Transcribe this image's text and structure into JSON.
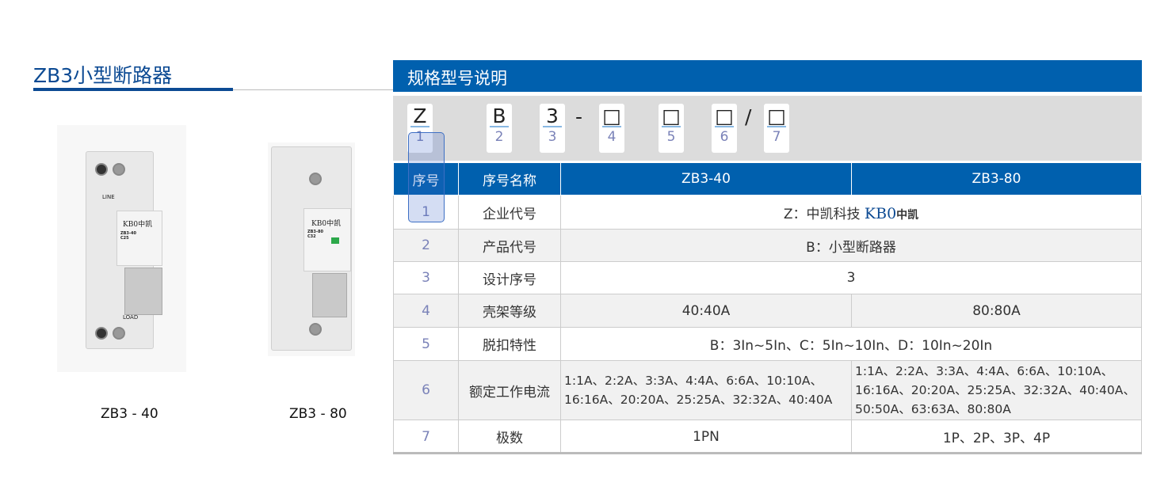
{
  "page_title": "ZB3小型断路器",
  "products": [
    {
      "caption": "ZB3 - 40",
      "brand": "KB0中凯",
      "model": "ZB3-40",
      "rating": "C25",
      "terminals_top": "LINE",
      "terminals_bottom": "LOAD"
    },
    {
      "caption": "ZB3 - 80",
      "brand": "KB0中凯",
      "model": "ZB3-80",
      "rating": "C32"
    }
  ],
  "spec_title": "规格型号说明",
  "code": [
    {
      "char": "Z",
      "num": "1"
    },
    {
      "char": "B",
      "num": "2"
    },
    {
      "char": "3",
      "num": "3"
    },
    {
      "char": "□",
      "num": "4"
    },
    {
      "char": "□",
      "num": "5"
    },
    {
      "char": "□",
      "num": "6"
    },
    {
      "char": "□",
      "num": "7"
    }
  ],
  "code_seps": {
    "dash": "-",
    "slash": "/"
  },
  "table": {
    "headers": [
      "序号",
      "序号名称",
      "ZB3-40",
      "ZB3-80"
    ],
    "rows": [
      {
        "no": "1",
        "name": "企业代号",
        "merged": "Z：中凯科技",
        "logo": "KB0",
        "logo_cn": "中凯"
      },
      {
        "no": "2",
        "name": "产品代号",
        "merged": "B：小型断路器"
      },
      {
        "no": "3",
        "name": "设计序号",
        "merged": "3"
      },
      {
        "no": "4",
        "name": "壳架等级",
        "a": "40:40A",
        "b": "80:80A"
      },
      {
        "no": "5",
        "name": "脱扣特性",
        "merged": "B：3In~5In、C：5In~10In、D：10In~20In"
      },
      {
        "no": "6",
        "name": "额定工作电流",
        "a": "1:1A、2:2A、3:3A、4:4A、6:6A、10:10A、16:16A、20:20A、25:25A、32:32A、40:40A",
        "b": "1:1A、2:2A、3:3A、4:4A、6:6A、10:10A、16:16A、20:20A、25:25A、32:32A、40:40A、50:50A、63:63A、80:80A"
      },
      {
        "no": "7",
        "name": "极数",
        "a": "1PN",
        "b": "1P、2P、3P、4P"
      }
    ]
  },
  "colors": {
    "primary": "#0060ae",
    "title": "#0c4a93",
    "number": "#7a82b8"
  }
}
